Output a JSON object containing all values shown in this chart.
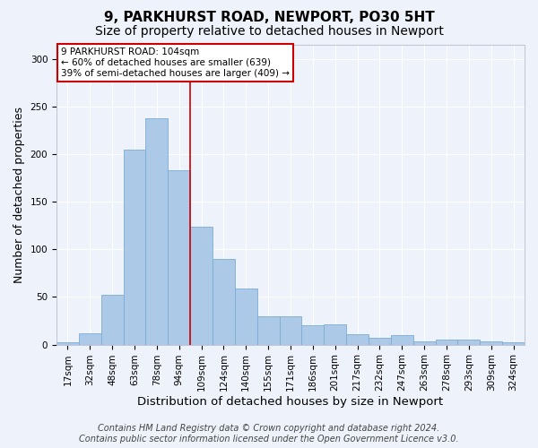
{
  "title1": "9, PARKHURST ROAD, NEWPORT, PO30 5HT",
  "title2": "Size of property relative to detached houses in Newport",
  "xlabel": "Distribution of detached houses by size in Newport",
  "ylabel": "Number of detached properties",
  "categories": [
    "17sqm",
    "32sqm",
    "48sqm",
    "63sqm",
    "78sqm",
    "94sqm",
    "109sqm",
    "124sqm",
    "140sqm",
    "155sqm",
    "171sqm",
    "186sqm",
    "201sqm",
    "217sqm",
    "232sqm",
    "247sqm",
    "263sqm",
    "278sqm",
    "293sqm",
    "309sqm",
    "324sqm"
  ],
  "values": [
    2,
    12,
    52,
    205,
    238,
    183,
    124,
    90,
    59,
    30,
    30,
    20,
    21,
    11,
    7,
    10,
    3,
    5,
    5,
    3,
    2
  ],
  "bar_color": "#adc9e8",
  "bar_edge_color": "#7aadd4",
  "vline_x_index": 5.5,
  "vline_color": "#cc0000",
  "annotation_text": "9 PARKHURST ROAD: 104sqm\n← 60% of detached houses are smaller (639)\n39% of semi-detached houses are larger (409) →",
  "annotation_box_color": "#ffffff",
  "annotation_box_edge_color": "#cc0000",
  "ylim": [
    0,
    315
  ],
  "yticks": [
    0,
    50,
    100,
    150,
    200,
    250,
    300
  ],
  "footer1": "Contains HM Land Registry data © Crown copyright and database right 2024.",
  "footer2": "Contains public sector information licensed under the Open Government Licence v3.0.",
  "bg_color": "#eef2fa",
  "grid_color": "#ffffff",
  "title1_fontsize": 11,
  "title2_fontsize": 10,
  "xlabel_fontsize": 9.5,
  "ylabel_fontsize": 9,
  "tick_fontsize": 7.5,
  "annotation_fontsize": 7.5,
  "footer_fontsize": 7
}
